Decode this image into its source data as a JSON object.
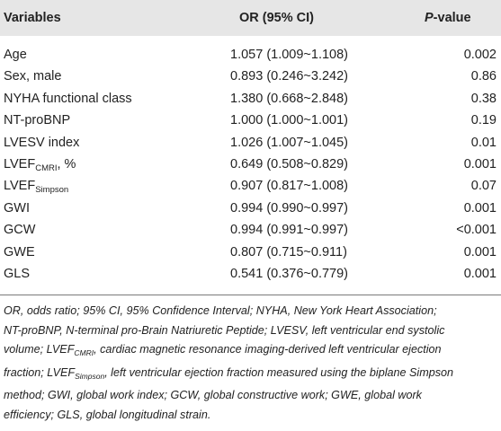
{
  "table": {
    "headers": {
      "variables": "Variables",
      "or": "OR (95% CI)",
      "p_italic": "P",
      "p_rest": "-value"
    },
    "rows": [
      {
        "label": "Age",
        "sub": "",
        "suffix": "",
        "or": "1.057 (1.009~1.108)",
        "p": "0.002"
      },
      {
        "label": "Sex, male",
        "sub": "",
        "suffix": "",
        "or": "0.893 (0.246~3.242)",
        "p": "0.86"
      },
      {
        "label": "NYHA functional class",
        "sub": "",
        "suffix": "",
        "or": "1.380 (0.668~2.848)",
        "p": "0.38"
      },
      {
        "label": "NT-proBNP",
        "sub": "",
        "suffix": "",
        "or": "1.000 (1.000~1.001)",
        "p": "0.19"
      },
      {
        "label": "LVESV index",
        "sub": "",
        "suffix": "",
        "or": "1.026 (1.007~1.045)",
        "p": "0.01"
      },
      {
        "label": "LVEF",
        "sub": "CMRI",
        "suffix": ", %",
        "or": "0.649 (0.508~0.829)",
        "p": "0.001"
      },
      {
        "label": "LVEF",
        "sub": "Simpson",
        "suffix": "",
        "or": "0.907 (0.817~1.008)",
        "p": "0.07"
      },
      {
        "label": "GWI",
        "sub": "",
        "suffix": "",
        "or": "0.994 (0.990~0.997)",
        "p": "0.001"
      },
      {
        "label": "GCW",
        "sub": "",
        "suffix": "",
        "or": "0.994 (0.991~0.997)",
        "p": "<0.001"
      },
      {
        "label": "GWE",
        "sub": "",
        "suffix": "",
        "or": "0.807 (0.715~0.911)",
        "p": "0.001"
      },
      {
        "label": "GLS",
        "sub": "",
        "suffix": "",
        "or": "0.541 (0.376~0.779)",
        "p": "0.001"
      }
    ]
  },
  "footnote": {
    "line1": "OR, odds ratio; 95% CI, 95% Confidence Interval; NYHA, New York Heart Association;",
    "line2": "NT-proBNP, N-terminal pro-Brain Natriuretic Peptide; LVESV, left ventricular end systolic",
    "line3_a": "volume; LVEF",
    "line3_sub": "CMRI",
    "line3_b": ", cardiac magnetic resonance imaging-derived left ventricular ejection",
    "line4_a": "fraction; LVEF",
    "line4_sub": "Simpson",
    "line4_b": ", left ventricular ejection fraction measured using the biplane Simpson",
    "line5": "method; GWI, global work index; GCW, global constructive work; GWE, global work",
    "line6": "efficiency; GLS, global longitudinal strain."
  }
}
